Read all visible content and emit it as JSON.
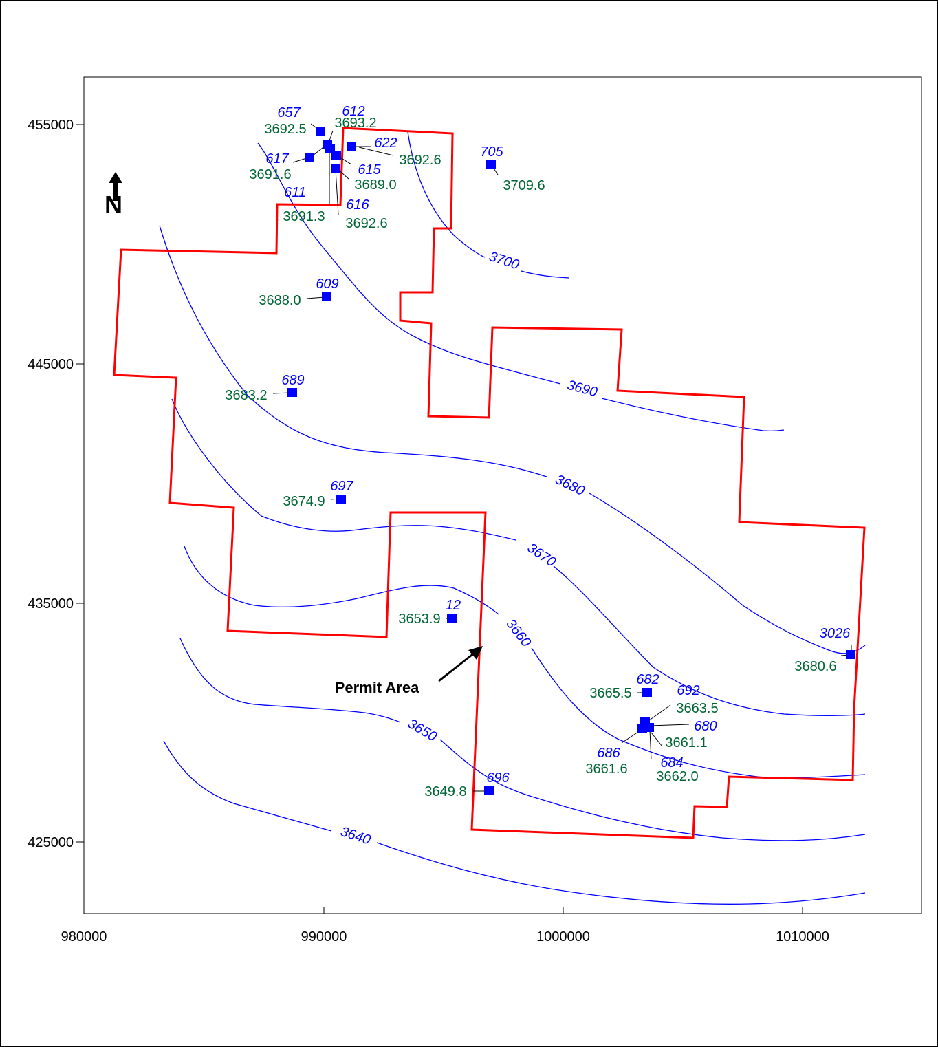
{
  "map": {
    "x_ticks": [
      "980000",
      "990000",
      "1000000",
      "1010000"
    ],
    "y_ticks": [
      "455000",
      "445000",
      "435000",
      "425000"
    ],
    "north_label": "N",
    "permit_label": "Permit Area",
    "colors": {
      "contour": "#0000ff",
      "permit_boundary": "#ff0000",
      "well_marker": "#0000ff",
      "well_id": "#0000ff",
      "well_value": "#006633"
    },
    "contour_values": [
      "3700",
      "3690",
      "3680",
      "3670",
      "3660",
      "3650",
      "3640"
    ],
    "wells": [
      {
        "id": "657",
        "value": "3692.5"
      },
      {
        "id": "612",
        "value": "3693.2"
      },
      {
        "id": "622",
        "value": "3692.6"
      },
      {
        "id": "705",
        "value": "3709.6"
      },
      {
        "id": "617",
        "value": "3691.6"
      },
      {
        "id": "615",
        "value": "3689.0"
      },
      {
        "id": "611",
        "value": "3691.3"
      },
      {
        "id": "616",
        "value": "3692.6"
      },
      {
        "id": "609",
        "value": "3688.0"
      },
      {
        "id": "689",
        "value": "3683.2"
      },
      {
        "id": "697",
        "value": "3674.9"
      },
      {
        "id": "12",
        "value": "3653.9"
      },
      {
        "id": "3026",
        "value": "3680.6"
      },
      {
        "id": "682",
        "value": "3665.5"
      },
      {
        "id": "692",
        "value": "3663.5"
      },
      {
        "id": "680",
        "value": "3661.1"
      },
      {
        "id": "686",
        "value": "3661.6"
      },
      {
        "id": "684",
        "value": "3662.0"
      },
      {
        "id": "696",
        "value": "3649.8"
      }
    ]
  }
}
